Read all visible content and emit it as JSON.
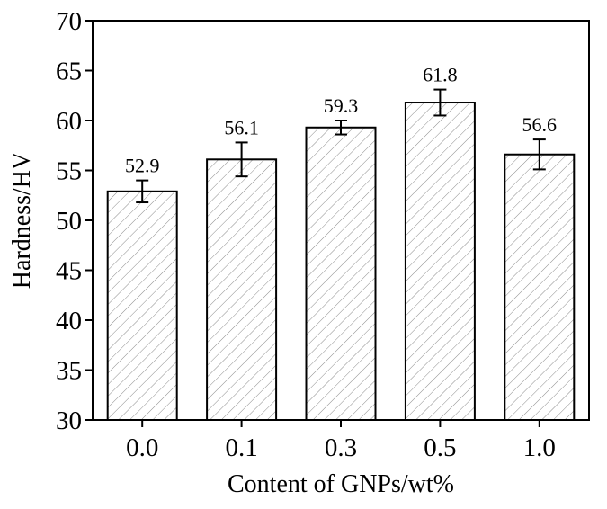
{
  "chart_data": {
    "type": "bar",
    "categories": [
      "0.0",
      "0.1",
      "0.3",
      "0.5",
      "1.0"
    ],
    "values": [
      52.9,
      56.1,
      59.3,
      61.8,
      56.6
    ],
    "errors": [
      1.1,
      1.7,
      0.7,
      1.3,
      1.5
    ],
    "data_labels": [
      "52.9",
      "56.1",
      "59.3",
      "61.8",
      "56.6"
    ],
    "xlabel": "Content of GNPs/wt%",
    "ylabel": "Hardness/HV",
    "ylim": [
      30,
      70
    ],
    "yticks": [
      "30",
      "35",
      "40",
      "45",
      "50",
      "55",
      "60",
      "65",
      "70"
    ],
    "grid": false,
    "bar_fill": "hatched",
    "colors": {
      "bar_edge": "#000000",
      "hatch": "#8c8c8c",
      "axis": "#000000"
    }
  }
}
